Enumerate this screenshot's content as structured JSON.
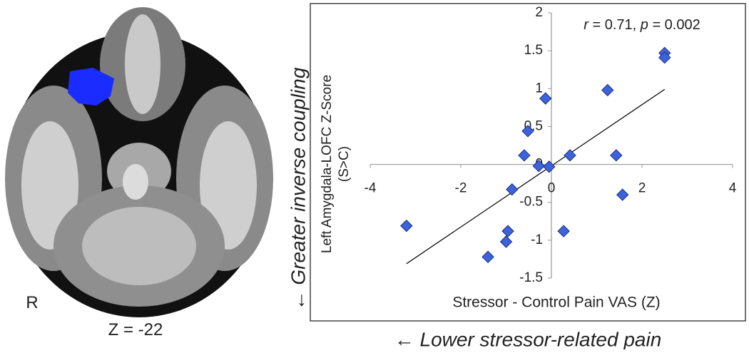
{
  "chart_data": {
    "type": "scatter",
    "annotation_parts": [
      "r",
      " = 0.71, ",
      "p",
      " = 0.002"
    ],
    "x_label": "Stressor - Control Pain VAS (Z)",
    "y_label": [
      "Left Amygdala-LOFC Z-Score",
      "(S>C)"
    ],
    "outer_y_label": "← Greater inverse coupling",
    "outer_x_label": "← Lower stressor-related pain",
    "image_labels": {
      "side": "R",
      "slice": "Z = -22"
    },
    "color": "#3d63dc",
    "series": [
      {
        "x": [
          2.5,
          2.5,
          1.24,
          -0.13,
          -0.52,
          -0.6,
          -0.28,
          -0.05,
          0.41,
          1.43,
          1.57,
          -0.87,
          0.27,
          -0.96,
          -1.0,
          -1.4,
          -3.2
        ],
        "values": [
          1.47,
          1.41,
          0.98,
          0.87,
          0.44,
          0.12,
          -0.02,
          -0.03,
          0.12,
          0.12,
          -0.4,
          -0.33,
          -0.88,
          -0.88,
          -1.02,
          -1.22,
          -0.81
        ]
      }
    ],
    "trendline": {
      "x": [
        -3.2,
        2.5
      ],
      "values": [
        -1.31,
        0.99
      ]
    },
    "xlim": [
      -4,
      4
    ],
    "ylim": [
      -1.5,
      2
    ],
    "xticks": [
      -4,
      -2,
      0,
      2,
      4
    ],
    "yticks": [
      -1.5,
      -1,
      -0.5,
      0,
      0.5,
      1,
      1.5,
      2
    ]
  }
}
